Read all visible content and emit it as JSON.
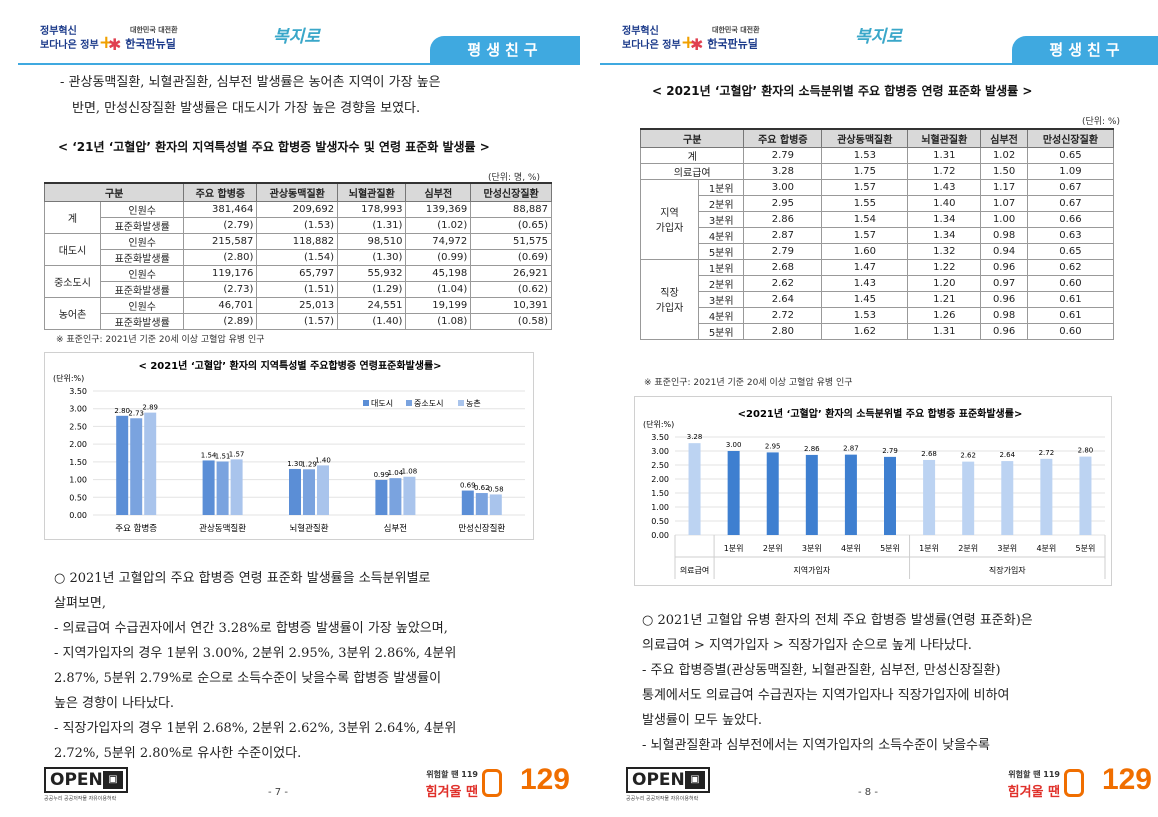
{
  "header": {
    "logo1_line1": "정부혁신",
    "logo1_line2": "보다나은 정부",
    "logo2_small": "대한민국 대전환",
    "logo2_main": "한국판뉴딜",
    "logo3": "복지로",
    "tab": "평생친구"
  },
  "left": {
    "intro_lines": [
      "- 관상동맥질환, 뇌혈관질환, 심부전 발생률은 농어촌 지역이 가장 높은",
      "반면, 만성신장질환 발생률은 대도시가 가장 높은 경향을 보였다."
    ],
    "table_caption": "< ‘21년 ‘고혈압’ 환자의 지역특성별 주요 합병증 발생자수 및 연령 표준화 발생률 >",
    "unit": "(단위: 명, %)",
    "headers": [
      "구분",
      "주요 합병증",
      "관상동맥질환",
      "뇌혈관질환",
      "심부전",
      "만성신장질환"
    ],
    "groups": [
      {
        "name": "계",
        "rows": [
          {
            "label": "인원수",
            "values": [
              "381,464",
              "209,692",
              "178,993",
              "139,369",
              "88,887"
            ]
          },
          {
            "label": "표준화발생률",
            "values": [
              "(2.79)",
              "(1.53)",
              "(1.31)",
              "(1.02)",
              "(0.65)"
            ]
          }
        ]
      },
      {
        "name": "대도시",
        "rows": [
          {
            "label": "인원수",
            "values": [
              "215,587",
              "118,882",
              "98,510",
              "74,972",
              "51,575"
            ]
          },
          {
            "label": "표준화발생률",
            "values": [
              "(2.80)",
              "(1.54)",
              "(1.30)",
              "(0.99)",
              "(0.69)"
            ]
          }
        ]
      },
      {
        "name": "중소도시",
        "rows": [
          {
            "label": "인원수",
            "values": [
              "119,176",
              "65,797",
              "55,932",
              "45,198",
              "26,921"
            ]
          },
          {
            "label": "표준화발생률",
            "values": [
              "(2.73)",
              "(1.51)",
              "(1.29)",
              "(1.04)",
              "(0.62)"
            ]
          }
        ]
      },
      {
        "name": "농어촌",
        "rows": [
          {
            "label": "인원수",
            "values": [
              "46,701",
              "25,013",
              "24,551",
              "19,199",
              "10,391"
            ]
          },
          {
            "label": "표준화발생률",
            "values": [
              "(2.89)",
              "(1.57)",
              "(1.40)",
              "(1.08)",
              "(0.58)"
            ]
          }
        ]
      }
    ],
    "note": "※ 표준인구: 2021년 기준 20세 이상 고혈압 유병 인구",
    "body_lines": [
      "○ 2021년 고혈압의 주요 합병증 연령 표준화 발생률을 소득분위별로",
      "   살펴보면,",
      "- 의료급여 수급권자에서 연간 3.28%로 합병증 발생률이 가장 높았으며,",
      "- 지역가입자의 경우 1분위 3.00%, 2분위 2.95%, 3분위 2.86%, 4분위",
      "  2.87%, 5분위 2.79%로 순으로 소득수준이 낮을수록 합병증 발생률이",
      "  높은 경향이 나타났다.",
      "- 직장가입자의 경우  1분위 2.68%, 2분위 2.62%, 3분위 2.64%, 4분위",
      "  2.72%, 5분위 2.80%로 유사한 수준이었다."
    ],
    "page_number": "- 7 -"
  },
  "right": {
    "table_caption": "< 2021년 ‘고혈압’ 환자의 소득분위별 주요 합병증 연령 표준화 발생률 >",
    "unit": "(단위: %)",
    "headers": [
      "구분",
      "주요 합병증",
      "관상동맥질환",
      "뇌혈관질환",
      "심부전",
      "만성신장질환"
    ],
    "simple_rows": [
      {
        "label": "계",
        "values": [
          "2.79",
          "1.53",
          "1.31",
          "1.02",
          "0.65"
        ]
      },
      {
        "label": "의료급여",
        "values": [
          "3.28",
          "1.75",
          "1.72",
          "1.50",
          "1.09"
        ]
      }
    ],
    "groups": [
      {
        "name": "지역\n가입자",
        "rows": [
          {
            "label": "1분위",
            "values": [
              "3.00",
              "1.57",
              "1.43",
              "1.17",
              "0.67"
            ]
          },
          {
            "label": "2분위",
            "values": [
              "2.95",
              "1.55",
              "1.40",
              "1.07",
              "0.67"
            ]
          },
          {
            "label": "3분위",
            "values": [
              "2.86",
              "1.54",
              "1.34",
              "1.00",
              "0.66"
            ]
          },
          {
            "label": "4분위",
            "values": [
              "2.87",
              "1.57",
              "1.34",
              "0.98",
              "0.63"
            ]
          },
          {
            "label": "5분위",
            "values": [
              "2.79",
              "1.60",
              "1.32",
              "0.94",
              "0.65"
            ]
          }
        ]
      },
      {
        "name": "직장\n가입자",
        "rows": [
          {
            "label": "1분위",
            "values": [
              "2.68",
              "1.47",
              "1.22",
              "0.96",
              "0.62"
            ]
          },
          {
            "label": "2분위",
            "values": [
              "2.62",
              "1.43",
              "1.20",
              "0.97",
              "0.60"
            ]
          },
          {
            "label": "3분위",
            "values": [
              "2.64",
              "1.45",
              "1.21",
              "0.96",
              "0.61"
            ]
          },
          {
            "label": "4분위",
            "values": [
              "2.72",
              "1.53",
              "1.26",
              "0.98",
              "0.61"
            ]
          },
          {
            "label": "5분위",
            "values": [
              "2.80",
              "1.62",
              "1.31",
              "0.96",
              "0.60"
            ]
          }
        ]
      }
    ],
    "note": "※ 표준인구: 2021년 기준 20세 이상 고혈압 유병 인구",
    "body_lines": [
      "○ 2021년 고혈압 유병 환자의 전체 주요 합병증 발생률(연령 표준화)은",
      "   의료급여 > 지역가입자 > 직장가입자 순으로 높게 나타났다.",
      "- 주요 합병증별(관상동맥질환, 뇌혈관질환, 심부전, 만성신장질환)",
      "  통계에서도 의료급여 수급권자는 지역가입자나 직장가입자에 비하여",
      "  발생률이 모두 높았다.",
      "- 뇌혈관질환과 심부전에서는 지역가입자의 소득수준이 낮을수록"
    ],
    "page_number": "- 8 -"
  },
  "footer": {
    "open": "OPEN",
    "open_sub": "공공누리  공공저작물 자유이용허락",
    "hot_line1": "위험할 땐 119",
    "hot_line2": "힘겨울 땐",
    "hot_num": "129"
  },
  "chart_data": [
    {
      "type": "bar",
      "title": "< 2021년 ‘고혈압’ 환자의 지역특성별 주요합병증 연령표준화발생률>",
      "ylabel": "(단위:%)",
      "categories": [
        "주요 합병증",
        "관상동맥질환",
        "뇌혈관질환",
        "심부전",
        "만성신장질환"
      ],
      "series": [
        {
          "name": "대도시",
          "values": [
            2.8,
            1.54,
            1.3,
            0.99,
            0.69
          ],
          "color": "#5b8ed6"
        },
        {
          "name": "중소도시",
          "values": [
            2.73,
            1.51,
            1.29,
            1.04,
            0.62
          ],
          "color": "#7aa3df"
        },
        {
          "name": "농촌",
          "values": [
            2.89,
            1.57,
            1.4,
            1.08,
            0.58
          ],
          "color": "#a9c4ec"
        }
      ],
      "data_labels": [
        [
          "2.80",
          "1.54",
          "1.30",
          "0.99",
          "0.69"
        ],
        [
          "2.73",
          "1.51",
          "1.29",
          "1.04",
          "0.62"
        ],
        [
          "2.89",
          "1.57",
          "1.40",
          "1.08",
          "0.58"
        ]
      ],
      "ylim": [
        0,
        3.5
      ],
      "yticks": [
        "0.00",
        "0.50",
        "1.00",
        "1.50",
        "2.00",
        "2.50",
        "3.00",
        "3.50"
      ],
      "legend": "top-right",
      "grid": true
    },
    {
      "type": "bar",
      "title": "<2021년 ‘고혈압’ 환자의 소득분위별 주요 합병증 표준화발생률>",
      "ylabel": "(단위:%)",
      "categories": [
        "의료급여",
        "1분위",
        "2분위",
        "3분위",
        "4분위",
        "5분위",
        "1분위",
        "2분위",
        "3분위",
        "4분위",
        "5분위"
      ],
      "group_labels": [
        "의료급여",
        "지역가입자",
        "직장가입자"
      ],
      "values": [
        3.28,
        3.0,
        2.95,
        2.86,
        2.87,
        2.79,
        2.68,
        2.62,
        2.64,
        2.72,
        2.8
      ],
      "labels": [
        "3.28",
        "3.00",
        "2.95",
        "2.86",
        "2.87",
        "2.79",
        "2.68",
        "2.62",
        "2.64",
        "2.72",
        "2.80"
      ],
      "colors": [
        "#bcd3f2",
        "#3e7fd0",
        "#3e7fd0",
        "#3e7fd0",
        "#3e7fd0",
        "#3e7fd0",
        "#bcd3f2",
        "#bcd3f2",
        "#bcd3f2",
        "#bcd3f2",
        "#bcd3f2"
      ],
      "ylim": [
        0,
        3.5
      ],
      "yticks": [
        "0.00",
        "0.50",
        "1.00",
        "1.50",
        "2.00",
        "2.50",
        "3.00",
        "3.50"
      ],
      "grid": true
    }
  ]
}
